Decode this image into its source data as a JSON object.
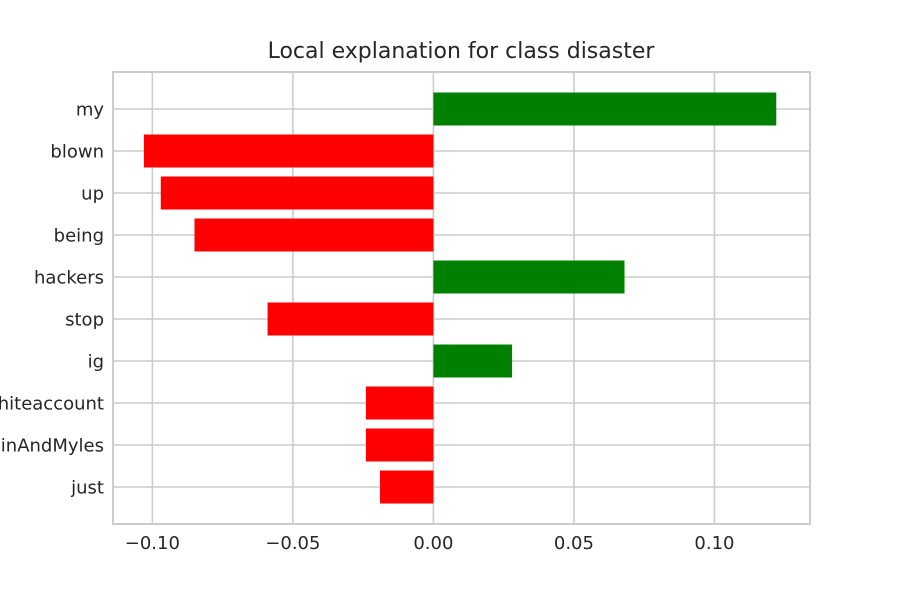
{
  "chart_data": {
    "type": "bar",
    "orientation": "horizontal",
    "title": "Local explanation for class disaster",
    "xlabel": "",
    "ylabel": "",
    "xlim": [
      -0.114,
      0.134
    ],
    "xticks": [
      -0.1,
      -0.05,
      0.0,
      0.05,
      0.1
    ],
    "xtick_labels": [
      "−0.10",
      "−0.05",
      "0.00",
      "0.05",
      "0.10"
    ],
    "categories": [
      "my",
      "blown",
      "up",
      "being",
      "hackers",
      "stop",
      "ig",
      "hiteaccount",
      "inAndMyles",
      "just"
    ],
    "values": [
      0.122,
      -0.103,
      -0.097,
      -0.085,
      0.068,
      -0.059,
      0.028,
      -0.024,
      -0.024,
      -0.019
    ],
    "positive_color": "#008000",
    "negative_color": "#ff0000",
    "grid": true,
    "legend": "none"
  }
}
